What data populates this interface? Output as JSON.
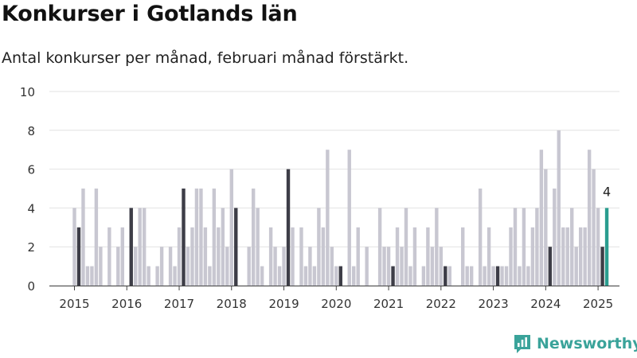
{
  "title": "Konkurser i Gotlands län",
  "subtitle": "Antal konkurser per månad, februari månad förstärkt.",
  "brand": {
    "name": "Newsworthy"
  },
  "colors": {
    "bar": "#c8c7d1",
    "highlight": "#3d3d47",
    "latest": "#2a9d8f",
    "grid": "#e2e2e2",
    "axis": "#444444",
    "brand": "#3aa39a"
  },
  "chart_data": {
    "type": "bar",
    "ylim": [
      0,
      10
    ],
    "y_ticks": [
      "0",
      "2",
      "4",
      "6",
      "8",
      "10"
    ],
    "x_ticks": [
      "2015",
      "2016",
      "2017",
      "2018",
      "2019",
      "2020",
      "2021",
      "2022",
      "2023",
      "2024",
      "2025"
    ],
    "highlight": "februari",
    "start_year": 2015,
    "values": [
      4,
      3,
      5,
      1,
      1,
      5,
      2,
      0,
      3,
      0,
      2,
      3,
      0,
      4,
      2,
      4,
      4,
      1,
      0,
      1,
      2,
      0,
      2,
      1,
      3,
      5,
      2,
      3,
      5,
      5,
      3,
      1,
      5,
      3,
      4,
      2,
      6,
      4,
      0,
      0,
      2,
      5,
      4,
      1,
      0,
      3,
      2,
      1,
      2,
      6,
      3,
      0,
      3,
      1,
      2,
      1,
      4,
      3,
      7,
      2,
      1,
      1,
      0,
      7,
      1,
      3,
      0,
      2,
      0,
      0,
      4,
      2,
      2,
      1,
      3,
      2,
      4,
      1,
      3,
      0,
      1,
      3,
      2,
      4,
      2,
      1,
      1,
      0,
      0,
      3,
      1,
      1,
      0,
      5,
      1,
      3,
      1,
      1,
      1,
      1,
      3,
      4,
      1,
      4,
      1,
      3,
      4,
      7,
      6,
      2,
      5,
      8,
      3,
      3,
      4,
      2,
      3,
      3,
      7,
      6,
      4,
      2,
      4
    ],
    "latest_label": "4"
  }
}
